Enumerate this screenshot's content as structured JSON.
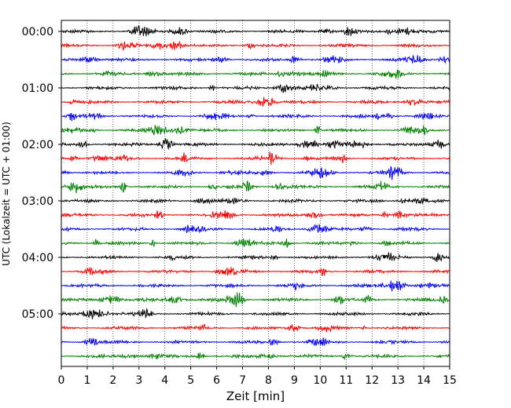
{
  "chart_data": {
    "type": "line",
    "title": "",
    "xlabel": "Zeit  [min]",
    "ylabel": "UTC (Lokalzeit = UTC + 01:00)",
    "xlim": [
      0,
      15
    ],
    "x_ticks": [
      "0",
      "1",
      "2",
      "3",
      "4",
      "5",
      "6",
      "7",
      "8",
      "9",
      "10",
      "11",
      "12",
      "13",
      "14",
      "15"
    ],
    "y_tick_labels": [
      "00:00",
      "01:00",
      "02:00",
      "03:00",
      "04:00",
      "05:00"
    ],
    "rows_per_hour": 4,
    "row_start_times": [
      "00:00",
      "00:15",
      "00:30",
      "00:45",
      "01:00",
      "01:15",
      "01:30",
      "01:45",
      "02:00",
      "02:15",
      "02:30",
      "02:45",
      "03:00",
      "03:15",
      "03:30",
      "03:45",
      "04:00",
      "04:15",
      "04:30",
      "04:45",
      "05:00",
      "05:15",
      "05:30",
      "05:45"
    ],
    "trace_colors": [
      "#000000",
      "#ff0000",
      "#0000ff",
      "#008000"
    ],
    "grid": "vertical dotted lines at each minute",
    "legend": "none"
  }
}
